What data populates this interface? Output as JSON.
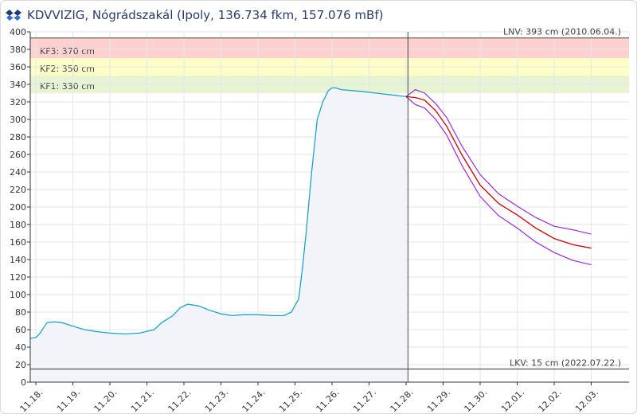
{
  "header": {
    "title": "KDVVIZIG, Nógrádszakál (Ipoly, 136.734 fkm, 157.076 mBf)",
    "logo_icon": "kdvvizig-logo-icon"
  },
  "colors": {
    "measured": "#1aa6c9",
    "measured_fill": "#f3f4f9",
    "forecast": "#cc0000",
    "forecast_band": "#9b2bd6",
    "kf3": "#ffd0d0",
    "kf2": "#ffffc8",
    "kf1": "#e6f4d4",
    "axis": "#333333",
    "grid": "#e6e6e6"
  },
  "chart_data": {
    "type": "line",
    "title": "KDVVIZIG, Nógrádszakál (Ipoly, 136.734 fkm, 157.076 mBf)",
    "ylim": [
      0,
      400
    ],
    "yticks": [
      0,
      20,
      40,
      60,
      80,
      100,
      120,
      140,
      160,
      180,
      200,
      220,
      240,
      260,
      280,
      300,
      320,
      340,
      360,
      380,
      400
    ],
    "xlim": [
      0,
      16
    ],
    "xticks": [
      {
        "x": 0,
        "label": "11.18."
      },
      {
        "x": 1,
        "label": "11.19."
      },
      {
        "x": 2,
        "label": "11.20."
      },
      {
        "x": 3,
        "label": "11.21."
      },
      {
        "x": 4,
        "label": "11.22."
      },
      {
        "x": 5,
        "label": "11.23."
      },
      {
        "x": 6,
        "label": "11.24."
      },
      {
        "x": 7,
        "label": "11.25."
      },
      {
        "x": 8,
        "label": "11.26."
      },
      {
        "x": 9,
        "label": "11.27."
      },
      {
        "x": 10,
        "label": "11.28."
      },
      {
        "x": 11,
        "label": "11.29."
      },
      {
        "x": 12,
        "label": "11.30."
      },
      {
        "x": 13,
        "label": "12.01."
      },
      {
        "x": 14,
        "label": "12.02."
      },
      {
        "x": 15,
        "label": "12.03."
      }
    ],
    "now_x": 10.05,
    "bands": [
      {
        "label": "KF3: 370 cm",
        "from": 370,
        "to": 393,
        "color": "#ffd0d0"
      },
      {
        "label": "KF2: 350 cm",
        "from": 350,
        "to": 370,
        "color": "#ffffc8"
      },
      {
        "label": "KF1: 330 cm",
        "from": 330,
        "to": 350,
        "color": "#e6f4d4"
      }
    ],
    "reference_lines": [
      {
        "label": "LNV: 393 cm (2010.06.04.)",
        "y": 393
      },
      {
        "label": "LKV: 15 cm (2022.07.22.)",
        "y": 15
      }
    ],
    "series": [
      {
        "role": "measured",
        "x": [
          -0.15,
          0.0,
          0.1,
          0.3,
          0.5,
          0.7,
          1.0,
          1.3,
          1.6,
          2.0,
          2.4,
          2.8,
          3.2,
          3.4,
          3.7,
          3.9,
          4.1,
          4.4,
          4.7,
          5.0,
          5.3,
          5.6,
          6.0,
          6.4,
          6.7,
          6.9,
          7.1,
          7.2,
          7.3,
          7.45,
          7.6,
          7.75,
          7.9,
          8.0,
          8.1,
          8.25,
          8.5,
          8.8,
          9.2,
          9.6,
          10.0
        ],
        "y": [
          50,
          51,
          55,
          68,
          69,
          68,
          64,
          60,
          58,
          56,
          55,
          56,
          60,
          68,
          76,
          85,
          89,
          87,
          82,
          78,
          76,
          77,
          77,
          76,
          76,
          80,
          95,
          130,
          170,
          240,
          300,
          320,
          333,
          336,
          336,
          334,
          333,
          332,
          330,
          328,
          326
        ]
      },
      {
        "role": "forecast",
        "x": [
          10.0,
          10.25,
          10.5,
          10.8,
          11.1,
          11.5,
          12.0,
          12.5,
          13.0,
          13.5,
          14.0,
          14.5,
          15.0
        ],
        "y": [
          326,
          325,
          322,
          310,
          292,
          260,
          225,
          204,
          191,
          176,
          164,
          157,
          153
        ]
      },
      {
        "role": "forecast-upper",
        "x": [
          10.0,
          10.25,
          10.5,
          10.8,
          11.1,
          11.5,
          12.0,
          12.5,
          13.0,
          13.5,
          14.0,
          14.5,
          15.0
        ],
        "y": [
          326,
          334,
          330,
          318,
          302,
          270,
          237,
          215,
          201,
          188,
          178,
          174,
          169
        ]
      },
      {
        "role": "forecast-lower",
        "x": [
          10.0,
          10.25,
          10.5,
          10.8,
          11.1,
          11.5,
          12.0,
          12.5,
          13.0,
          13.5,
          14.0,
          14.5,
          15.0
        ],
        "y": [
          326,
          317,
          313,
          300,
          282,
          248,
          212,
          190,
          176,
          160,
          148,
          139,
          134
        ]
      }
    ]
  }
}
